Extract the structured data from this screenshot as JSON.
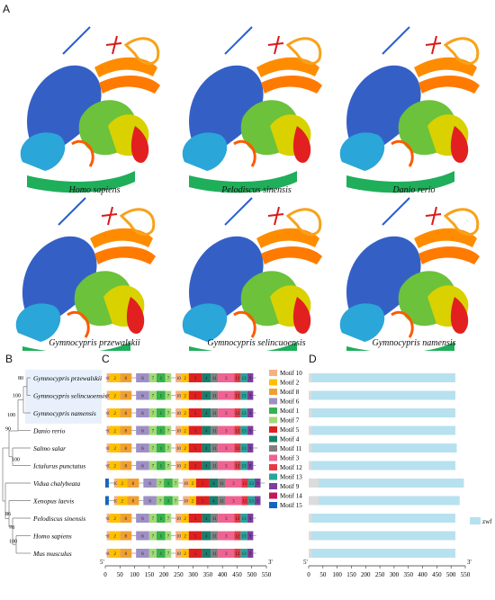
{
  "panels": {
    "A": "A",
    "B": "B",
    "C": "C",
    "D": "D"
  },
  "structures": [
    {
      "caption": "Homo sapiens"
    },
    {
      "caption": "Pelodiscus sinensis"
    },
    {
      "caption": "Danio rerio"
    },
    {
      "caption": "Gymnocypris przewalskii"
    },
    {
      "caption": "Gymnocypris selincuoensis"
    },
    {
      "caption": "Gymnocypris namensis"
    }
  ],
  "tree": {
    "taxa": [
      "Gymnocypris przewalskii",
      "Gymnocypris selincuoensis",
      "Gymnocypris namensis",
      "Danio rerio",
      "Salmo salar",
      "Ictalurus punctatus",
      "Vidua chalybeata",
      "Xenopus laevis",
      "Pelodiscus sinensis",
      "Homo sapiens",
      "Mus musculus"
    ],
    "bootstrap": [
      "80",
      "100",
      "100",
      "90",
      "100",
      "86",
      "78",
      "100"
    ]
  },
  "motif_axis": {
    "ticks": [
      "0",
      "50",
      "100",
      "150",
      "200",
      "250",
      "300",
      "350",
      "400",
      "450",
      "500",
      "550"
    ],
    "left_end": "5'",
    "right_end": "3'"
  },
  "motif_legend": [
    {
      "name": "Motif 10",
      "color": "#f4b183"
    },
    {
      "name": "Motif 2",
      "color": "#ffc000"
    },
    {
      "name": "Motif 8",
      "color": "#f0a030"
    },
    {
      "name": "Motif 6",
      "color": "#9e8fc4"
    },
    {
      "name": "Motif 1",
      "color": "#37b24d"
    },
    {
      "name": "Motif 7",
      "color": "#a3d977"
    },
    {
      "name": "Motif 5",
      "color": "#e02020"
    },
    {
      "name": "Motif 4",
      "color": "#1a7f6e"
    },
    {
      "name": "Motif 11",
      "color": "#808080"
    },
    {
      "name": "Motif 3",
      "color": "#f06292"
    },
    {
      "name": "Motif 12",
      "color": "#e63946"
    },
    {
      "name": "Motif 13",
      "color": "#26a69a"
    },
    {
      "name": "Motif 9",
      "color": "#7b3fa0"
    },
    {
      "name": "Motif 14",
      "color": "#c2185b"
    },
    {
      "name": "Motif 15",
      "color": "#1565c0"
    }
  ],
  "domain_axis": {
    "ticks": [
      "0",
      "50",
      "100",
      "150",
      "200",
      "250",
      "300",
      "350",
      "400",
      "450",
      "500",
      "550"
    ],
    "left_end": "5'",
    "right_end": "3'",
    "legend": "zwf",
    "legend_color": "#b7e1ef"
  },
  "chart_data": {
    "type": "bar",
    "categories": [
      "Gymnocypris przewalskii",
      "Gymnocypris selincuoensis",
      "Gymnocypris namensis",
      "Danio rerio",
      "Salmo salar",
      "Ictalurus punctatus",
      "Vidua chalybeata",
      "Xenopus laevis",
      "Pelodiscus sinensis",
      "Homo sapiens",
      "Mus musculus"
    ],
    "protein_length": [
      515,
      515,
      515,
      515,
      520,
      515,
      545,
      530,
      515,
      515,
      515
    ],
    "zwf_domain": [
      [
        10,
        515
      ],
      [
        10,
        515
      ],
      [
        10,
        515
      ],
      [
        10,
        515
      ],
      [
        10,
        520
      ],
      [
        10,
        515
      ],
      [
        35,
        545
      ],
      [
        35,
        530
      ],
      [
        10,
        515
      ],
      [
        10,
        515
      ],
      [
        10,
        515
      ]
    ],
    "xlim": [
      0,
      550
    ]
  }
}
